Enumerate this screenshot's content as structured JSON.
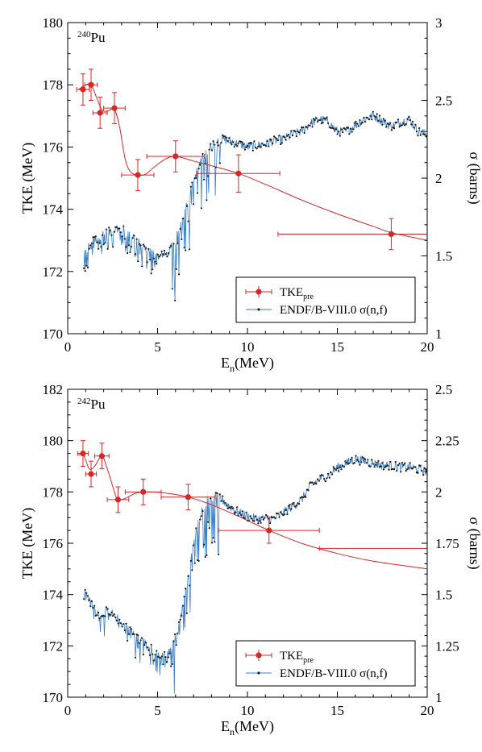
{
  "chart_data": [
    {
      "type": "line",
      "title": "",
      "isotope_label": {
        "mass": "240",
        "element": "Pu"
      },
      "xlabel": {
        "main": "E",
        "sub": "n",
        "rest": "(MeV)"
      },
      "ylabel_left": "TKE (MeV)",
      "ylabel_right": "σ (barns)",
      "xlim": [
        0,
        20
      ],
      "ylim_left": [
        170,
        180
      ],
      "ylim_right": [
        1,
        3
      ],
      "xticks": [
        "0",
        "5",
        "10",
        "15",
        "20"
      ],
      "yticks_left": [
        "170",
        "172",
        "174",
        "176",
        "178",
        "180"
      ],
      "yticks_right": [
        "1",
        "1.5",
        "2",
        "2.5",
        "3"
      ],
      "grid": false,
      "legend": {
        "position": "bottom-right",
        "entries": [
          {
            "label_main": "TKE",
            "label_sub": "pre"
          },
          {
            "label_main": "ENDF/B-VIII.0 σ(n,f)",
            "label_sub": ""
          }
        ]
      },
      "tke_points": [
        {
          "x": 0.85,
          "y": 177.85,
          "xerr": 0.35,
          "yerr": 0.5
        },
        {
          "x": 1.3,
          "y": 178.0,
          "xerr": 0.35,
          "yerr": 0.5
        },
        {
          "x": 1.8,
          "y": 177.1,
          "xerr": 0.4,
          "yerr": 0.5
        },
        {
          "x": 2.6,
          "y": 177.25,
          "xerr": 0.6,
          "yerr": 0.5
        },
        {
          "x": 3.9,
          "y": 175.1,
          "xerr": 0.9,
          "yerr": 0.5
        },
        {
          "x": 6.0,
          "y": 175.7,
          "xerr": 1.6,
          "yerr": 0.5
        },
        {
          "x": 9.5,
          "y": 175.15,
          "xerr": 2.3,
          "yerr": 0.6
        },
        {
          "x": 18.0,
          "y": 173.2,
          "xerr": 6.3,
          "yerr": 0.5
        }
      ],
      "tke_fit": {
        "x": [
          0.6,
          1.0,
          1.3,
          1.6,
          1.9,
          2.2,
          2.6,
          2.9,
          3.2,
          3.5,
          3.9,
          4.3,
          4.8,
          5.4,
          6.0,
          7.0,
          8.0,
          9.5,
          11,
          13,
          15,
          17,
          18,
          20
        ],
        "y": [
          177.85,
          178.0,
          178.0,
          177.6,
          177.2,
          177.15,
          177.2,
          176.6,
          175.6,
          175.2,
          175.1,
          175.12,
          175.35,
          175.6,
          175.7,
          175.55,
          175.4,
          175.15,
          174.8,
          174.3,
          173.85,
          173.45,
          173.25,
          173.0
        ]
      },
      "sigma_endf": {
        "x": [
          0.9,
          1.2,
          1.5,
          2.0,
          2.5,
          3.0,
          3.3,
          3.6,
          4.0,
          4.5,
          5.0,
          5.3,
          5.6,
          6.0,
          6.4,
          6.8,
          7.2,
          7.6,
          8.0,
          8.5,
          9.0,
          9.5,
          10.0,
          10.5,
          11.0,
          11.5,
          12.0,
          12.5,
          13.0,
          13.5,
          14.0,
          14.5,
          15.0,
          15.5,
          16.0,
          16.5,
          17.0,
          17.5,
          18.0,
          18.5,
          19.0,
          19.5,
          20.0
        ],
        "y": [
          1.5,
          1.57,
          1.6,
          1.64,
          1.66,
          1.67,
          1.65,
          1.63,
          1.58,
          1.53,
          1.5,
          1.5,
          1.52,
          1.6,
          1.75,
          1.9,
          2.05,
          2.15,
          2.2,
          2.25,
          2.24,
          2.22,
          2.2,
          2.21,
          2.22,
          2.24,
          2.25,
          2.28,
          2.3,
          2.35,
          2.38,
          2.36,
          2.3,
          2.3,
          2.34,
          2.38,
          2.4,
          2.37,
          2.33,
          2.36,
          2.38,
          2.3,
          2.28
        ]
      }
    },
    {
      "type": "line",
      "title": "",
      "isotope_label": {
        "mass": "242",
        "element": "Pu"
      },
      "xlabel": {
        "main": "E",
        "sub": "n",
        "rest": "(MeV)"
      },
      "ylabel_left": "TKE (MeV)",
      "ylabel_right": "σ (barns)",
      "xlim": [
        0,
        20
      ],
      "ylim_left": [
        170,
        182
      ],
      "ylim_right": [
        1,
        2.5
      ],
      "xticks": [
        "0",
        "5",
        "10",
        "15",
        "20"
      ],
      "yticks_left": [
        "170",
        "172",
        "174",
        "176",
        "178",
        "180",
        "182"
      ],
      "yticks_right": [
        "1",
        "1.25",
        "1.5",
        "1.75",
        "2",
        "2.25",
        "2.5"
      ],
      "grid": false,
      "legend": {
        "position": "bottom-right",
        "entries": [
          {
            "label_main": "TKE",
            "label_sub": "pre"
          },
          {
            "label_main": "ENDF/B-VIII.0 σ(n,f)",
            "label_sub": ""
          }
        ]
      },
      "tke_points": [
        {
          "x": 0.85,
          "y": 179.5,
          "xerr": 0.3,
          "yerr": 0.5
        },
        {
          "x": 1.3,
          "y": 178.7,
          "xerr": 0.3,
          "yerr": 0.5
        },
        {
          "x": 1.9,
          "y": 179.4,
          "xerr": 0.4,
          "yerr": 0.5
        },
        {
          "x": 2.8,
          "y": 177.7,
          "xerr": 0.6,
          "yerr": 0.5
        },
        {
          "x": 4.2,
          "y": 178.0,
          "xerr": 1.0,
          "yerr": 0.5
        },
        {
          "x": 6.7,
          "y": 177.8,
          "xerr": 1.5,
          "yerr": 0.5
        },
        {
          "x": 11.2,
          "y": 176.5,
          "xerr": 2.8,
          "yerr": 0.5
        },
        {
          "x": 17.0,
          "y": 175.8,
          "xerr": 3.0,
          "yerr": 0.0
        }
      ],
      "tke_fit": {
        "x": [
          0.6,
          0.9,
          1.2,
          1.5,
          1.9,
          2.2,
          2.6,
          2.8,
          3.2,
          3.8,
          4.5,
          5.5,
          6.7,
          8.0,
          9.5,
          11.2,
          13,
          15,
          17,
          20
        ],
        "y": [
          179.45,
          179.4,
          178.9,
          179.0,
          179.4,
          178.9,
          178.0,
          177.7,
          177.75,
          177.95,
          178.0,
          177.95,
          177.8,
          177.5,
          177.05,
          176.5,
          176.0,
          175.6,
          175.3,
          175.0
        ]
      },
      "sigma_endf": {
        "x": [
          0.9,
          1.1,
          1.4,
          1.8,
          2.2,
          2.6,
          3.0,
          3.5,
          4.0,
          4.5,
          5.0,
          5.5,
          5.8,
          6.2,
          6.6,
          7.0,
          7.4,
          7.8,
          8.2,
          8.6,
          9.0,
          9.5,
          10.0,
          10.5,
          11.0,
          11.5,
          12.0,
          12.5,
          13.0,
          13.5,
          14.0,
          14.5,
          15.0,
          15.5,
          16.0,
          16.5,
          17.0,
          17.5,
          18.0,
          18.5,
          19.0,
          19.5,
          20.0
        ],
        "y": [
          1.55,
          1.5,
          1.44,
          1.4,
          1.42,
          1.4,
          1.36,
          1.32,
          1.28,
          1.25,
          1.2,
          1.2,
          1.24,
          1.35,
          1.55,
          1.75,
          1.9,
          1.97,
          1.98,
          1.96,
          1.93,
          1.9,
          1.88,
          1.87,
          1.87,
          1.87,
          1.9,
          1.93,
          1.96,
          2.03,
          2.06,
          2.08,
          2.12,
          2.14,
          2.16,
          2.15,
          2.14,
          2.13,
          2.13,
          2.12,
          2.12,
          2.11,
          2.1
        ]
      }
    }
  ]
}
